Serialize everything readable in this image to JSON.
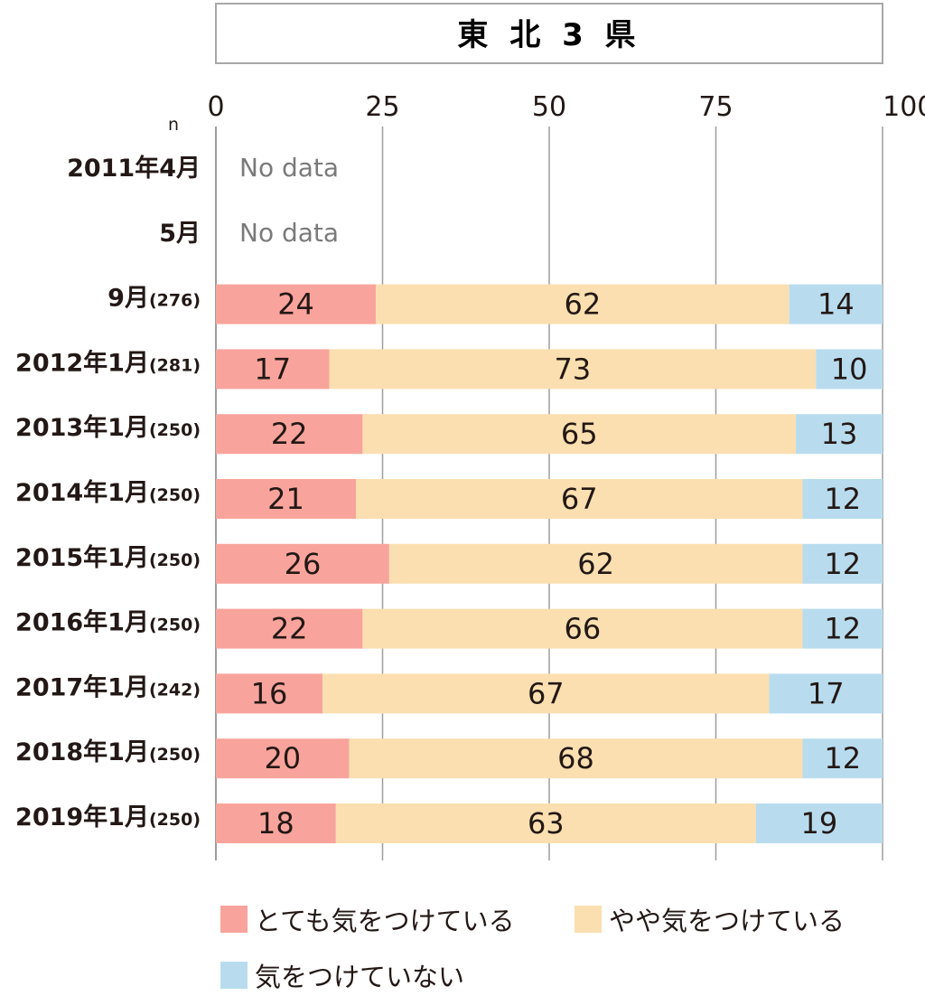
{
  "chart_data": {
    "type": "bar",
    "orientation": "horizontal",
    "stacked": true,
    "title": "東 北 3 県",
    "n_label": "n",
    "xlim": [
      0,
      100
    ],
    "x_ticks": [
      "0",
      "25",
      "50",
      "75",
      "100%"
    ],
    "grid": true,
    "legend_position": "bottom",
    "categories": [
      {
        "label": "2011年4月",
        "n": ""
      },
      {
        "label": "5月",
        "n": ""
      },
      {
        "label": "9月",
        "n": "(276)"
      },
      {
        "label": "2012年1月",
        "n": "(281)"
      },
      {
        "label": "2013年1月",
        "n": "(250)"
      },
      {
        "label": "2014年1月",
        "n": "(250)"
      },
      {
        "label": "2015年1月",
        "n": "(250)"
      },
      {
        "label": "2016年1月",
        "n": "(250)"
      },
      {
        "label": "2017年1月",
        "n": "(242)"
      },
      {
        "label": "2018年1月",
        "n": "(250)"
      },
      {
        "label": "2019年1月",
        "n": "(250)"
      }
    ],
    "no_data_text": "No data",
    "no_data_indices": [
      0,
      1
    ],
    "series": [
      {
        "name": "とても気をつけている",
        "color": "#f8a49c",
        "values": [
          null,
          null,
          24,
          17,
          22,
          21,
          26,
          22,
          16,
          20,
          18
        ]
      },
      {
        "name": "やや気をつけている",
        "color": "#fbdfb0",
        "values": [
          null,
          null,
          62,
          73,
          65,
          67,
          62,
          66,
          67,
          68,
          63
        ]
      },
      {
        "name": "気をつけていない",
        "color": "#b8dcee",
        "values": [
          null,
          null,
          14,
          10,
          13,
          12,
          12,
          12,
          17,
          12,
          19
        ]
      }
    ]
  }
}
